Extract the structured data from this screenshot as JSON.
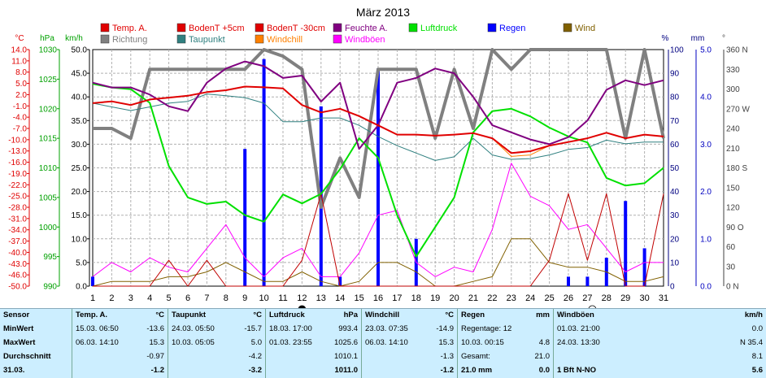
{
  "chart_data": {
    "type": "line",
    "title": "März 2013",
    "x_ticks": [
      1,
      2,
      3,
      4,
      5,
      6,
      7,
      8,
      9,
      10,
      11,
      12,
      13,
      14,
      15,
      16,
      17,
      18,
      19,
      20,
      21,
      22,
      23,
      24,
      25,
      26,
      27,
      28,
      29,
      30,
      31
    ],
    "axis_units": {
      "temp": "°C",
      "pressure": "hPa",
      "wind": "km/h",
      "humidity": "%",
      "rain": "mm",
      "direction": "°"
    },
    "axes": {
      "temp": {
        "ticks": [
          "14.0",
          "11.0",
          "8.0",
          "5.0",
          "2.0",
          "-1.0",
          "-4.0",
          "-7.0",
          "-10.0",
          "-13.0",
          "-16.0",
          "-19.0",
          "-22.0",
          "-25.0",
          "-28.0",
          "-31.0",
          "-34.0",
          "-37.0",
          "-40.0",
          "-43.0",
          "-46.0",
          "-50.0"
        ],
        "range": [
          -50,
          14
        ]
      },
      "pressure": {
        "ticks": [
          "1030",
          "1025",
          "1020",
          "1015",
          "1010",
          "1005",
          "1000",
          "995",
          "990"
        ],
        "range": [
          990,
          1030
        ]
      },
      "wind": {
        "ticks": [
          "50.0",
          "45.0",
          "40.0",
          "35.0",
          "30.0",
          "25.0",
          "20.0",
          "15.0",
          "10.0",
          "5.0",
          "0.0"
        ],
        "range": [
          0,
          50
        ]
      },
      "humidity": {
        "ticks": [
          "100",
          "90",
          "80",
          "70",
          "60",
          "50",
          "40",
          "30",
          "20",
          "10",
          "0"
        ],
        "range": [
          0,
          100
        ]
      },
      "rain": {
        "ticks": [
          "5.0",
          "4.0",
          "3.0",
          "2.0",
          "1.0",
          "0.0"
        ],
        "range": [
          0,
          5
        ]
      },
      "direction": {
        "ticks": [
          "360 N",
          "330",
          "300",
          "270 W",
          "240",
          "210",
          "180 S",
          "150",
          "120",
          "90 O",
          "60",
          "30",
          "0 N"
        ]
      }
    },
    "legend": [
      {
        "name": "Temp. A.",
        "color": "#e00000"
      },
      {
        "name": "BodenT +5cm",
        "color": "#e00000"
      },
      {
        "name": "BodenT -30cm",
        "color": "#e00000"
      },
      {
        "name": "Feuchte A.",
        "color": "#800080"
      },
      {
        "name": "Luftdruck",
        "color": "#00e000"
      },
      {
        "name": "Regen",
        "color": "#0000ff"
      },
      {
        "name": "Wind",
        "color": "#806000"
      },
      {
        "name": "Richtung",
        "color": "#808080"
      },
      {
        "name": "Taupunkt",
        "color": "#308080"
      },
      {
        "name": "Windchill",
        "color": "#ff8000"
      },
      {
        "name": "Windböen",
        "color": "#ff00ff"
      }
    ],
    "series": [
      {
        "name": "Temp. A.",
        "axis": "temp",
        "values": [
          -0.5,
          0.0,
          -1.0,
          0.5,
          1.0,
          1.5,
          2.5,
          3.0,
          4.0,
          3.8,
          3.5,
          -1.0,
          -3.0,
          -2.0,
          -4.0,
          -6.5,
          -9.0,
          -9.0,
          -9.3,
          -9.0,
          -8.6,
          -10.0,
          -14.0,
          -13.5,
          -12.0,
          -11.0,
          -10.0,
          -8.5,
          -10.0,
          -9.0,
          -9.5
        ]
      },
      {
        "name": "Feuchte A.",
        "axis": "humidity",
        "values": [
          86,
          84,
          84,
          81,
          76,
          74,
          86,
          92,
          95,
          93,
          88,
          89,
          78,
          86,
          58,
          68,
          86,
          88,
          92,
          90,
          80,
          68,
          65,
          62,
          60,
          63,
          70,
          83,
          87,
          85,
          87
        ]
      },
      {
        "name": "Luftdruck",
        "axis": "pressure",
        "values": [
          1024.2,
          1023.6,
          1023.3,
          1021.0,
          1010.3,
          1005.0,
          1003.9,
          1004.3,
          1002.0,
          1000.9,
          1005.5,
          1004.0,
          1005.6,
          1009.8,
          1015.0,
          1011.7,
          1002.0,
          995.0,
          1000.0,
          1005.0,
          1016.0,
          1019.6,
          1020.0,
          1018.7,
          1016.8,
          1015.3,
          1014.3,
          1008.3,
          1007.0,
          1007.4,
          1010.0
        ]
      },
      {
        "name": "Taupunkt",
        "axis": "temp",
        "values": [
          -0.5,
          -1.5,
          -2.5,
          -1.5,
          -0.5,
          0.0,
          2.0,
          1.5,
          1.0,
          -0.5,
          -5.5,
          -5.5,
          -4.5,
          -4.5,
          -6.5,
          -9.5,
          -12.0,
          -14.0,
          -16.0,
          -15.0,
          -10.0,
          -14.5,
          -15.7,
          -15.5,
          -14.5,
          -13.0,
          -12.5,
          -10.5,
          -11.5,
          -11.0,
          -11.0
        ]
      },
      {
        "name": "Windchill",
        "axis": "temp",
        "values": [
          -0.5,
          0.0,
          -1.0,
          0.5,
          1.0,
          1.5,
          2.5,
          3.0,
          4.0,
          3.8,
          3.5,
          -1.0,
          -3.0,
          -2.0,
          -4.0,
          -6.5,
          -9.0,
          -9.0,
          -9.3,
          -9.0,
          -8.6,
          -10.0,
          -14.9,
          -14.5,
          -12.0,
          -11.0,
          -10.0,
          -8.5,
          -10.0,
          -9.0,
          -9.5
        ]
      },
      {
        "name": "BodenT +5cm",
        "axis": "temp",
        "values": [
          -50,
          -50,
          -50,
          -50,
          -43,
          -50,
          -43,
          -50,
          -50,
          -50,
          -50,
          -43,
          -25,
          -50,
          -50,
          -50,
          -50,
          -50,
          -50,
          -50,
          -50,
          -50,
          -50,
          -50,
          -43,
          -25,
          -43,
          -25,
          -50,
          -50,
          -25
        ]
      },
      {
        "name": "Windböen",
        "axis": "wind",
        "values": [
          2,
          5,
          3,
          6,
          4,
          3,
          8,
          13,
          6,
          2,
          6,
          8,
          2,
          2,
          7,
          15,
          16,
          5,
          2,
          4,
          3,
          12,
          26,
          19,
          17,
          12,
          13,
          8,
          3,
          5,
          5
        ]
      },
      {
        "name": "Wind",
        "axis": "wind",
        "values": [
          0,
          1,
          1,
          1,
          2,
          2,
          3,
          5,
          3,
          1,
          1,
          3,
          1,
          0,
          1,
          5,
          5,
          3,
          0,
          0,
          1,
          2,
          10,
          10,
          5,
          4,
          4,
          3,
          1,
          1,
          2
        ]
      },
      {
        "name": "Richtung",
        "axis": "direction",
        "values": [
          240,
          240,
          225,
          330,
          330,
          330,
          330,
          330,
          330,
          360,
          350,
          330,
          120,
          195,
          135,
          330,
          330,
          330,
          225,
          330,
          240,
          360,
          330,
          360,
          360,
          360,
          360,
          360,
          225,
          360,
          225
        ]
      },
      {
        "name": "Regen",
        "axis": "rain",
        "values": [
          0.2,
          0,
          0,
          0,
          0,
          0,
          0,
          0,
          2.9,
          4.8,
          0,
          0,
          3.8,
          0.2,
          0,
          4.6,
          0,
          1.0,
          0,
          0,
          0,
          0,
          0,
          0,
          0,
          0.2,
          0.2,
          0.6,
          1.8,
          0.8,
          0
        ]
      }
    ],
    "moon_markers": [
      {
        "day": 12,
        "symbol": "●"
      },
      {
        "day": 27,
        "symbol": "○"
      }
    ],
    "grid": true
  },
  "stats": {
    "sensor_header": "Sensor",
    "row_labels": [
      "MinWert",
      "MaxWert",
      "Durchschnitt",
      "31.03."
    ],
    "columns": [
      {
        "title": "Temp. A.",
        "unit": "°C",
        "rows": [
          [
            "15.03. 06:50",
            "-13.6"
          ],
          [
            "06.03. 14:10",
            "15.3"
          ],
          [
            "",
            "-0.97"
          ],
          [
            "",
            "-1.2"
          ]
        ]
      },
      {
        "title": "Taupunkt",
        "unit": "°C",
        "rows": [
          [
            "24.03. 05:50",
            "-15.7"
          ],
          [
            "10.03. 05:05",
            "5.0"
          ],
          [
            "",
            "-4.2"
          ],
          [
            "",
            "-3.2"
          ]
        ]
      },
      {
        "title": "Luftdruck",
        "unit": "hPa",
        "rows": [
          [
            "18.03. 17:00",
            "993.4"
          ],
          [
            "01.03. 23:55",
            "1025.6"
          ],
          [
            "",
            "1010.1"
          ],
          [
            "",
            "1011.0"
          ]
        ]
      },
      {
        "title": "Windchill",
        "unit": "°C",
        "rows": [
          [
            "23.03. 07:35",
            "-14.9"
          ],
          [
            "06.03. 14:10",
            "15.3"
          ],
          [
            "",
            "-1.3"
          ],
          [
            "",
            "-1.2"
          ]
        ]
      },
      {
        "title": "Regen",
        "unit": "mm",
        "rows": [
          [
            "Regentage: 12",
            ""
          ],
          [
            "10.03. 00:15",
            "4.8"
          ],
          [
            "Gesamt:",
            "21.0"
          ],
          [
            "21.0 mm",
            "0.0"
          ]
        ]
      },
      {
        "title": "Windböen",
        "unit": "km/h",
        "rows": [
          [
            "01.03. 21:00",
            "0.0"
          ],
          [
            "24.03. 13:30",
            "N 35.4"
          ],
          [
            "",
            "8.1"
          ],
          [
            "1 Bft N-NO",
            "5.6"
          ]
        ]
      }
    ]
  }
}
